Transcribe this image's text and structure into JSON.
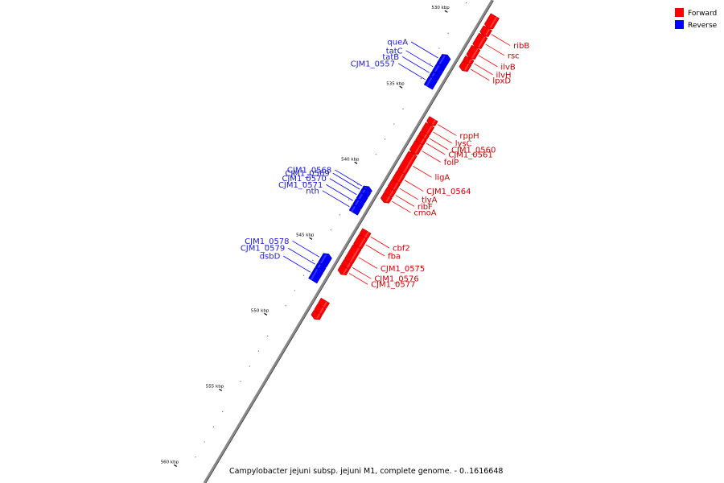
{
  "legend": [
    {
      "label": "Forward",
      "color": "#ff0000"
    },
    {
      "label": "Reverse",
      "color": "#0000ff"
    }
  ],
  "caption": "Campylobacter jejuni subsp. jejuni M1, complete genome. - 0..1616648",
  "axis": {
    "ticks": [
      {
        "label": "530 kbp",
        "kbp": 530
      },
      {
        "label": "535 kbp",
        "kbp": 535
      },
      {
        "label": "540 kbp",
        "kbp": 540
      },
      {
        "label": "545 kbp",
        "kbp": 545
      },
      {
        "label": "550 kbp",
        "kbp": 550
      },
      {
        "label": "555 kbp",
        "kbp": 555
      },
      {
        "label": "560 kbp",
        "kbp": 560
      }
    ]
  },
  "colors": {
    "forward": "#ff0000",
    "reverse": "#0000ff",
    "backbone": "#888888"
  },
  "genes": [
    {
      "name": "",
      "strand": "forward",
      "start_kbp": 528.8,
      "end_kbp": 529.5
    },
    {
      "name": "ribB",
      "strand": "forward",
      "start_kbp": 529.6,
      "end_kbp": 530.0
    },
    {
      "name": "rsc",
      "strand": "forward",
      "start_kbp": 530.1,
      "end_kbp": 530.8
    },
    {
      "name": "ilvB",
      "strand": "forward",
      "start_kbp": 530.9,
      "end_kbp": 531.5
    },
    {
      "name": "ilvH",
      "strand": "forward",
      "start_kbp": 531.6,
      "end_kbp": 531.85
    },
    {
      "name": "lpxD",
      "strand": "forward",
      "start_kbp": 531.9,
      "end_kbp": 532.3
    },
    {
      "name": "queA",
      "strand": "reverse",
      "start_kbp": 532.2,
      "end_kbp": 532.8
    },
    {
      "name": "tatC",
      "strand": "reverse",
      "start_kbp": 532.85,
      "end_kbp": 533.3
    },
    {
      "name": "tatB",
      "strand": "reverse",
      "start_kbp": 533.35,
      "end_kbp": 533.6
    },
    {
      "name": "CJM1_0557",
      "strand": "reverse",
      "start_kbp": 533.65,
      "end_kbp": 534.2
    },
    {
      "name": "rppH",
      "strand": "forward",
      "start_kbp": 535.6,
      "end_kbp": 535.9
    },
    {
      "name": "lysC",
      "strand": "forward",
      "start_kbp": 536.0,
      "end_kbp": 536.5
    },
    {
      "name": "CJM1_0560",
      "strand": "forward",
      "start_kbp": 536.55,
      "end_kbp": 536.8
    },
    {
      "name": "CJM1_0561",
      "strand": "forward",
      "start_kbp": 536.85,
      "end_kbp": 537.15
    },
    {
      "name": "folP",
      "strand": "forward",
      "start_kbp": 537.2,
      "end_kbp": 537.8
    },
    {
      "name": "ligA",
      "strand": "forward",
      "start_kbp": 537.9,
      "end_kbp": 539.1
    },
    {
      "name": "CJM1_0564",
      "strand": "forward",
      "start_kbp": 539.15,
      "end_kbp": 539.7
    },
    {
      "name": "tlyA",
      "strand": "forward",
      "start_kbp": 539.75,
      "end_kbp": 540.2
    },
    {
      "name": "ribF",
      "strand": "forward",
      "start_kbp": 540.25,
      "end_kbp": 540.6
    },
    {
      "name": "cmoA",
      "strand": "forward",
      "start_kbp": 540.65,
      "end_kbp": 541.0
    },
    {
      "name": "CJM1_0568",
      "strand": "reverse",
      "start_kbp": 540.9,
      "end_kbp": 541.0
    },
    {
      "name": "CJM1_0569",
      "strand": "reverse",
      "start_kbp": 541.05,
      "end_kbp": 541.3
    },
    {
      "name": "CJM1_0570",
      "strand": "reverse",
      "start_kbp": 541.35,
      "end_kbp": 541.7
    },
    {
      "name": "CJM1_0571",
      "strand": "reverse",
      "start_kbp": 541.75,
      "end_kbp": 542.1
    },
    {
      "name": "nth",
      "strand": "reverse",
      "start_kbp": 542.15,
      "end_kbp": 542.5
    },
    {
      "name": "cbf2",
      "strand": "forward",
      "start_kbp": 543.0,
      "end_kbp": 543.35
    },
    {
      "name": "fba",
      "strand": "forward",
      "start_kbp": 543.4,
      "end_kbp": 544.0
    },
    {
      "name": "CJM1_0575",
      "strand": "forward",
      "start_kbp": 544.05,
      "end_kbp": 545.0
    },
    {
      "name": "CJM1_0576",
      "strand": "forward",
      "start_kbp": 545.05,
      "end_kbp": 545.35
    },
    {
      "name": "CJM1_0577",
      "strand": "forward",
      "start_kbp": 545.4,
      "end_kbp": 545.75
    },
    {
      "name": "CJM1_0578",
      "strand": "reverse",
      "start_kbp": 545.35,
      "end_kbp": 545.95
    },
    {
      "name": "CJM1_0579",
      "strand": "reverse",
      "start_kbp": 546.0,
      "end_kbp": 546.25
    },
    {
      "name": "dsbD",
      "strand": "reverse",
      "start_kbp": 546.3,
      "end_kbp": 547.0
    },
    {
      "name": "",
      "strand": "forward",
      "start_kbp": 547.6,
      "end_kbp": 547.95
    },
    {
      "name": "",
      "strand": "forward",
      "start_kbp": 548.0,
      "end_kbp": 548.35
    },
    {
      "name": "",
      "strand": "forward",
      "start_kbp": 548.4,
      "end_kbp": 548.7
    }
  ]
}
